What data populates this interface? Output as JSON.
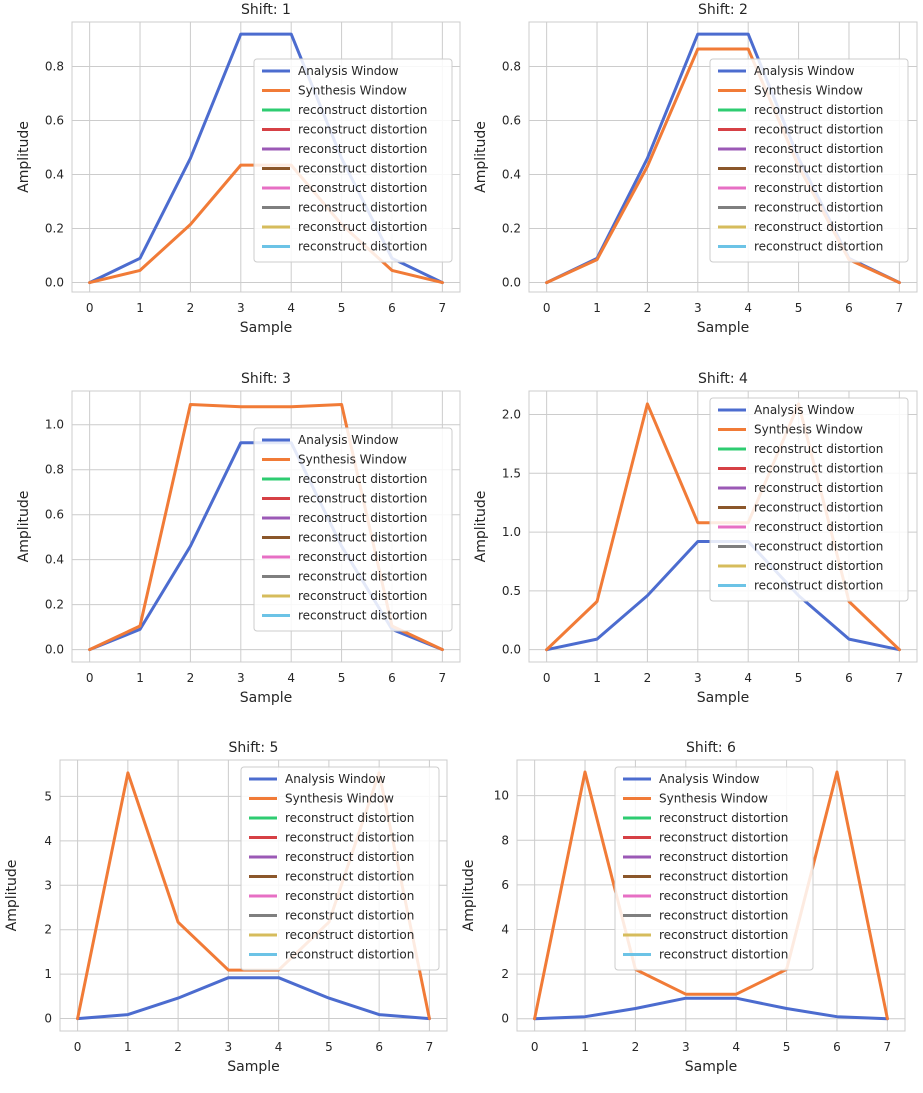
{
  "chart_data": [
    {
      "type": "line",
      "title": "Shift: 1",
      "xlabel": "Sample",
      "ylabel": "Amplitude",
      "x": [
        0,
        1,
        2,
        3,
        4,
        5,
        6,
        7
      ],
      "xticks": [
        "0",
        "1",
        "2",
        "3",
        "4",
        "5",
        "6",
        "7"
      ],
      "ylim": [
        -0.035,
        0.965
      ],
      "yticks": [
        "0.0",
        "0.2",
        "0.4",
        "0.6",
        "0.8"
      ],
      "legend_position": "center-right",
      "series": [
        {
          "name": "Analysis Window",
          "color": "#4c6ccf",
          "values": [
            0.0,
            0.09,
            0.46,
            0.92,
            0.92,
            0.46,
            0.09,
            0.0
          ]
        },
        {
          "name": "Synthesis Window",
          "color": "#f17b37",
          "values": [
            0.0,
            0.045,
            0.215,
            0.435,
            0.435,
            0.215,
            0.045,
            0.0
          ]
        }
      ],
      "legend_extra": [
        {
          "name": "reconstruct distortion",
          "color": "#2ecc71"
        },
        {
          "name": "reconstruct distortion",
          "color": "#d64045"
        },
        {
          "name": "reconstruct distortion",
          "color": "#9b59b6"
        },
        {
          "name": "reconstruct distortion",
          "color": "#8b572a"
        },
        {
          "name": "reconstruct distortion",
          "color": "#e76fc4"
        },
        {
          "name": "reconstruct distortion",
          "color": "#7f7f7f"
        },
        {
          "name": "reconstruct distortion",
          "color": "#d6bc5c"
        },
        {
          "name": "reconstruct distortion",
          "color": "#6cc3e6"
        }
      ]
    },
    {
      "type": "line",
      "title": "Shift: 2",
      "xlabel": "Sample",
      "ylabel": "Amplitude",
      "x": [
        0,
        1,
        2,
        3,
        4,
        5,
        6,
        7
      ],
      "xticks": [
        "0",
        "1",
        "2",
        "3",
        "4",
        "5",
        "6",
        "7"
      ],
      "ylim": [
        -0.035,
        0.965
      ],
      "yticks": [
        "0.0",
        "0.2",
        "0.4",
        "0.6",
        "0.8"
      ],
      "legend_position": "center-right",
      "series": [
        {
          "name": "Analysis Window",
          "color": "#4c6ccf",
          "values": [
            0.0,
            0.09,
            0.46,
            0.92,
            0.92,
            0.46,
            0.09,
            0.0
          ]
        },
        {
          "name": "Synthesis Window",
          "color": "#f17b37",
          "values": [
            0.0,
            0.085,
            0.43,
            0.865,
            0.865,
            0.43,
            0.085,
            0.0
          ]
        }
      ],
      "legend_extra": [
        {
          "name": "reconstruct distortion",
          "color": "#2ecc71"
        },
        {
          "name": "reconstruct distortion",
          "color": "#d64045"
        },
        {
          "name": "reconstruct distortion",
          "color": "#9b59b6"
        },
        {
          "name": "reconstruct distortion",
          "color": "#8b572a"
        },
        {
          "name": "reconstruct distortion",
          "color": "#e76fc4"
        },
        {
          "name": "reconstruct distortion",
          "color": "#7f7f7f"
        },
        {
          "name": "reconstruct distortion",
          "color": "#d6bc5c"
        },
        {
          "name": "reconstruct distortion",
          "color": "#6cc3e6"
        }
      ]
    },
    {
      "type": "line",
      "title": "Shift: 3",
      "xlabel": "Sample",
      "ylabel": "Amplitude",
      "x": [
        0,
        1,
        2,
        3,
        4,
        5,
        6,
        7
      ],
      "xticks": [
        "0",
        "1",
        "2",
        "3",
        "4",
        "5",
        "6",
        "7"
      ],
      "ylim": [
        -0.055,
        1.15
      ],
      "yticks": [
        "0.0",
        "0.2",
        "0.4",
        "0.6",
        "0.8",
        "1.0"
      ],
      "legend_position": "center-right",
      "series": [
        {
          "name": "Analysis Window",
          "color": "#4c6ccf",
          "values": [
            0.0,
            0.09,
            0.46,
            0.92,
            0.92,
            0.46,
            0.09,
            0.0
          ]
        },
        {
          "name": "Synthesis Window",
          "color": "#f17b37",
          "values": [
            0.0,
            0.105,
            1.09,
            1.08,
            1.08,
            1.09,
            0.105,
            0.0
          ]
        }
      ],
      "legend_extra": [
        {
          "name": "reconstruct distortion",
          "color": "#2ecc71"
        },
        {
          "name": "reconstruct distortion",
          "color": "#d64045"
        },
        {
          "name": "reconstruct distortion",
          "color": "#9b59b6"
        },
        {
          "name": "reconstruct distortion",
          "color": "#8b572a"
        },
        {
          "name": "reconstruct distortion",
          "color": "#e76fc4"
        },
        {
          "name": "reconstruct distortion",
          "color": "#7f7f7f"
        },
        {
          "name": "reconstruct distortion",
          "color": "#d6bc5c"
        },
        {
          "name": "reconstruct distortion",
          "color": "#6cc3e6"
        }
      ]
    },
    {
      "type": "line",
      "title": "Shift: 4",
      "xlabel": "Sample",
      "ylabel": "Amplitude",
      "x": [
        0,
        1,
        2,
        3,
        4,
        5,
        6,
        7
      ],
      "xticks": [
        "0",
        "1",
        "2",
        "3",
        "4",
        "5",
        "6",
        "7"
      ],
      "ylim": [
        -0.105,
        2.2
      ],
      "yticks": [
        "0.0",
        "0.5",
        "1.0",
        "1.5",
        "2.0"
      ],
      "legend_position": "upper-right",
      "series": [
        {
          "name": "Analysis Window",
          "color": "#4c6ccf",
          "values": [
            0.0,
            0.09,
            0.46,
            0.92,
            0.92,
            0.46,
            0.09,
            0.0
          ]
        },
        {
          "name": "Synthesis Window",
          "color": "#f17b37",
          "values": [
            0.0,
            0.41,
            2.09,
            1.08,
            1.08,
            2.09,
            0.41,
            0.0
          ]
        }
      ],
      "legend_extra": [
        {
          "name": "reconstruct distortion",
          "color": "#2ecc71"
        },
        {
          "name": "reconstruct distortion",
          "color": "#d64045"
        },
        {
          "name": "reconstruct distortion",
          "color": "#9b59b6"
        },
        {
          "name": "reconstruct distortion",
          "color": "#8b572a"
        },
        {
          "name": "reconstruct distortion",
          "color": "#e76fc4"
        },
        {
          "name": "reconstruct distortion",
          "color": "#7f7f7f"
        },
        {
          "name": "reconstruct distortion",
          "color": "#d6bc5c"
        },
        {
          "name": "reconstruct distortion",
          "color": "#6cc3e6"
        }
      ]
    },
    {
      "type": "line",
      "title": "Shift: 5",
      "xlabel": "Sample",
      "ylabel": "Amplitude",
      "x": [
        0,
        1,
        2,
        3,
        4,
        5,
        6,
        7
      ],
      "xticks": [
        "0",
        "1",
        "2",
        "3",
        "4",
        "5",
        "6",
        "7"
      ],
      "ylim": [
        -0.28,
        5.82
      ],
      "yticks": [
        "0",
        "1",
        "2",
        "3",
        "4",
        "5"
      ],
      "legend_position": "upper-right",
      "series": [
        {
          "name": "Analysis Window",
          "color": "#4c6ccf",
          "values": [
            0.0,
            0.09,
            0.46,
            0.92,
            0.92,
            0.46,
            0.09,
            0.0
          ]
        },
        {
          "name": "Synthesis Window",
          "color": "#f17b37",
          "values": [
            0.0,
            5.53,
            2.17,
            1.09,
            1.09,
            2.17,
            5.53,
            0.0
          ]
        }
      ],
      "legend_extra": [
        {
          "name": "reconstruct distortion",
          "color": "#2ecc71"
        },
        {
          "name": "reconstruct distortion",
          "color": "#d64045"
        },
        {
          "name": "reconstruct distortion",
          "color": "#9b59b6"
        },
        {
          "name": "reconstruct distortion",
          "color": "#8b572a"
        },
        {
          "name": "reconstruct distortion",
          "color": "#e76fc4"
        },
        {
          "name": "reconstruct distortion",
          "color": "#7f7f7f"
        },
        {
          "name": "reconstruct distortion",
          "color": "#d6bc5c"
        },
        {
          "name": "reconstruct distortion",
          "color": "#6cc3e6"
        }
      ]
    },
    {
      "type": "line",
      "title": "Shift: 6",
      "xlabel": "Sample",
      "ylabel": "Amplitude",
      "x": [
        0,
        1,
        2,
        3,
        4,
        5,
        6,
        7
      ],
      "xticks": [
        "0",
        "1",
        "2",
        "3",
        "4",
        "5",
        "6",
        "7"
      ],
      "ylim": [
        -0.55,
        11.6
      ],
      "yticks": [
        "0",
        "2",
        "4",
        "6",
        "8",
        "10"
      ],
      "legend_position": "upper-center",
      "series": [
        {
          "name": "Analysis Window",
          "color": "#4c6ccf",
          "values": [
            0.0,
            0.09,
            0.46,
            0.92,
            0.92,
            0.46,
            0.09,
            0.0
          ]
        },
        {
          "name": "Synthesis Window",
          "color": "#f17b37",
          "values": [
            0.0,
            11.06,
            2.21,
            1.1,
            1.1,
            2.21,
            11.06,
            0.0
          ]
        }
      ],
      "legend_extra": [
        {
          "name": "reconstruct distortion",
          "color": "#2ecc71"
        },
        {
          "name": "reconstruct distortion",
          "color": "#d64045"
        },
        {
          "name": "reconstruct distortion",
          "color": "#9b59b6"
        },
        {
          "name": "reconstruct distortion",
          "color": "#8b572a"
        },
        {
          "name": "reconstruct distortion",
          "color": "#e76fc4"
        },
        {
          "name": "reconstruct distortion",
          "color": "#7f7f7f"
        },
        {
          "name": "reconstruct distortion",
          "color": "#d6bc5c"
        },
        {
          "name": "reconstruct distortion",
          "color": "#6cc3e6"
        }
      ]
    }
  ]
}
